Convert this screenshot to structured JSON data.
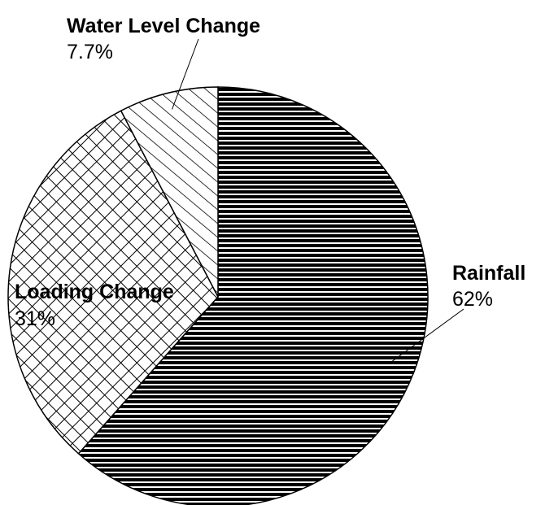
{
  "chart_data": {
    "type": "pie",
    "title": "",
    "start_angle_deg": 0,
    "direction": "clockwise",
    "slices": [
      {
        "label": "Rainfall",
        "value": 62,
        "value_label": "62%",
        "pattern": "horizontal-lines"
      },
      {
        "label": "Loading Change",
        "value": 31,
        "value_label": "31%",
        "pattern": "crosshatch"
      },
      {
        "label": "Water Level Change",
        "value": 7.7,
        "value_label": "7.7%",
        "pattern": "diagonal-lines"
      }
    ],
    "colors": {
      "stroke": "#000000",
      "background": "#ffffff"
    }
  }
}
